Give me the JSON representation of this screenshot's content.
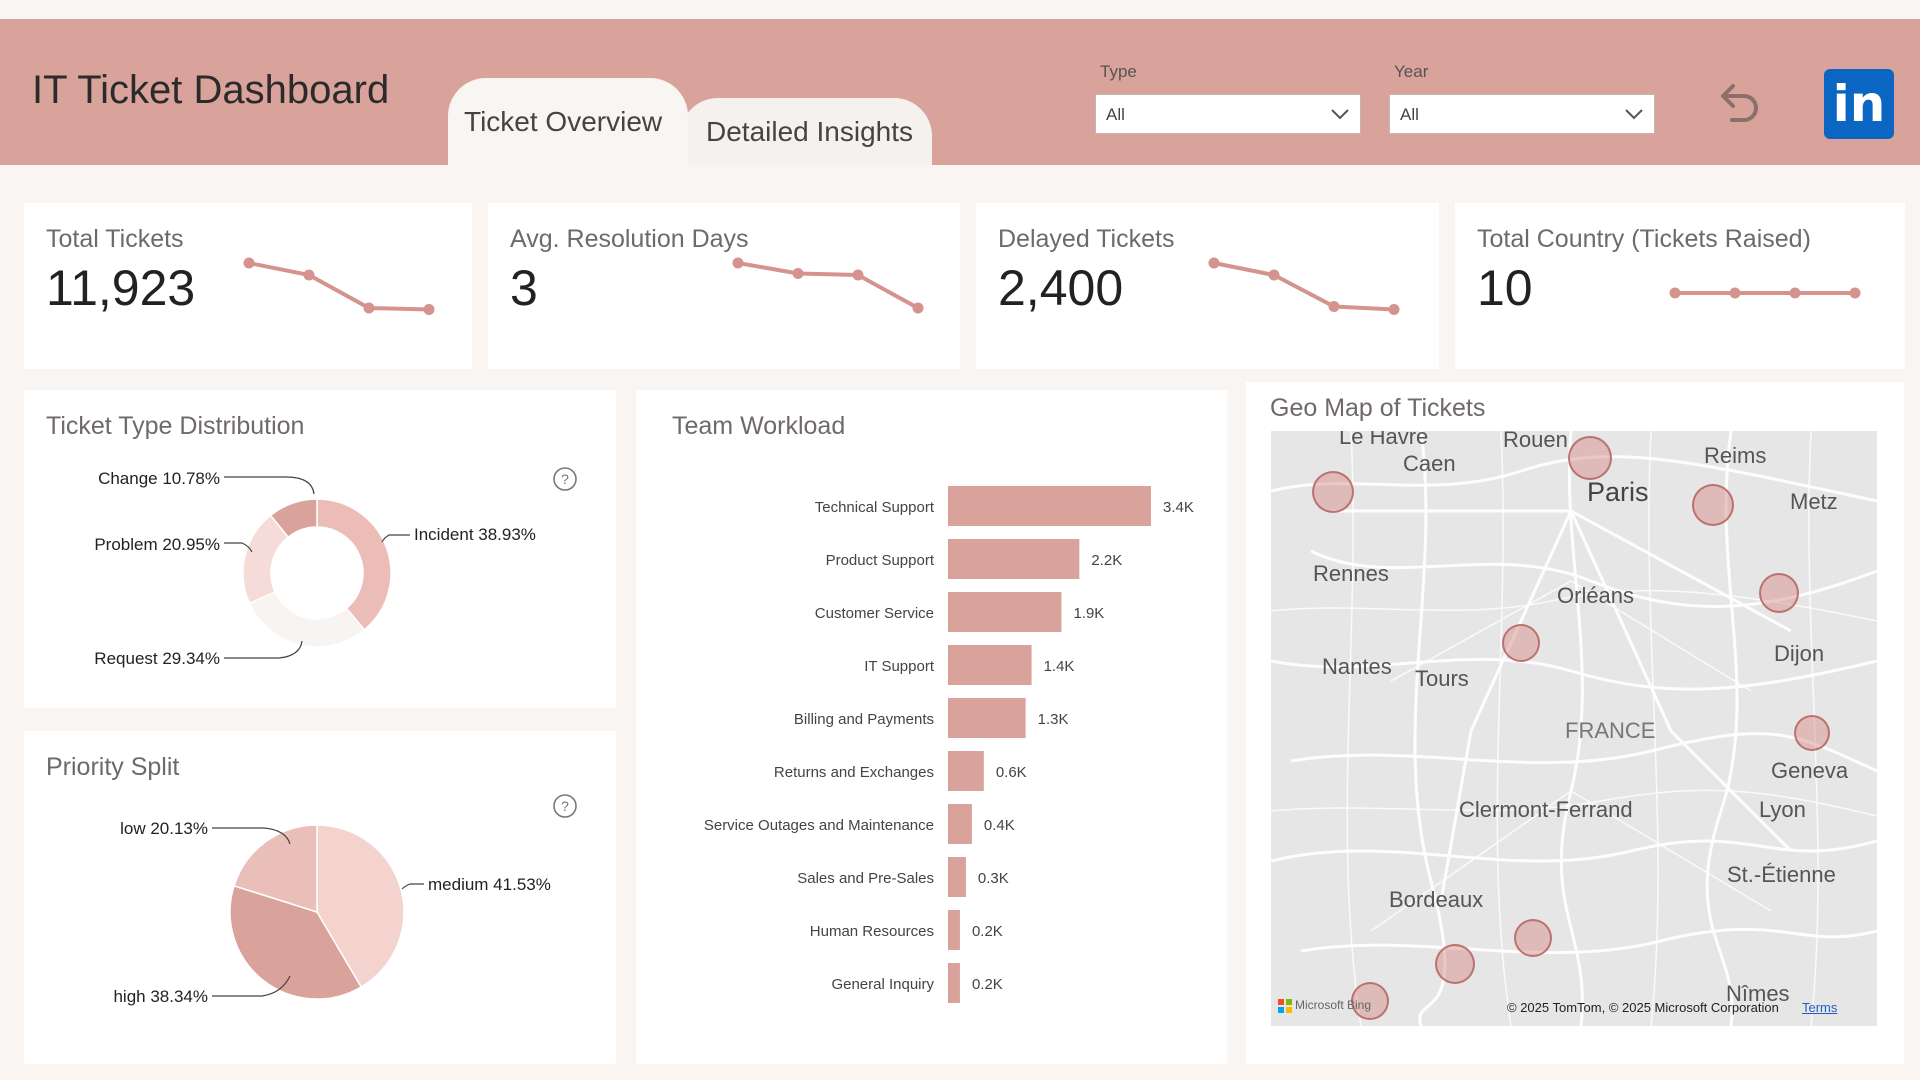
{
  "app_title": "IT Ticket Dashboard",
  "tabs": [
    {
      "label": "Ticket Overview"
    },
    {
      "label": "Detailed Insights"
    }
  ],
  "filters": {
    "type": {
      "label": "Type",
      "value": "All"
    },
    "year": {
      "label": "Year",
      "value": "All"
    }
  },
  "kpis": [
    {
      "title": "Total Tickets",
      "value": "11,923",
      "trend": [
        4,
        3.2,
        1.0,
        0.9
      ]
    },
    {
      "title": "Avg. Resolution Days",
      "value": "3",
      "trend": [
        4,
        3.3,
        3.2,
        1.0
      ]
    },
    {
      "title": "Delayed Tickets",
      "value": "2,400",
      "trend": [
        4,
        3.2,
        1.1,
        0.9
      ]
    },
    {
      "title": "Total Country (Tickets Raised)",
      "value": "10",
      "trend": [
        2,
        2,
        2,
        2
      ]
    }
  ],
  "ticket_type": {
    "title": "Ticket Type Distribution",
    "segments": [
      {
        "label": "Incident 38.93%",
        "value": 38.93,
        "color": "#ecbdb7"
      },
      {
        "label": "Request 29.34%",
        "value": 29.34,
        "color": "#f8f4f2"
      },
      {
        "label": "Problem 20.95%",
        "value": 20.95,
        "color": "#f5dcd8"
      },
      {
        "label": "Change 10.78%",
        "value": 10.78,
        "color": "#d9a39c"
      }
    ]
  },
  "priority": {
    "title": "Priority Split",
    "segments": [
      {
        "label": "medium 41.53%",
        "value": 41.53,
        "color": "#f4d2cd"
      },
      {
        "label": "high 38.34%",
        "value": 38.34,
        "color": "#d9a39c"
      },
      {
        "label": "low 20.13%",
        "value": 20.13,
        "color": "#ebbfb9"
      }
    ]
  },
  "team_workload": {
    "title": "Team Workload",
    "bar_color": "#d9a39c",
    "categories": [
      "Technical Support",
      "Product Support",
      "Customer Service",
      "IT Support",
      "Billing and Payments",
      "Returns and Exchanges",
      "Service Outages and Maintenance",
      "Sales and Pre-Sales",
      "Human Resources",
      "General Inquiry"
    ],
    "values": [
      3.4,
      2.2,
      1.9,
      1.4,
      1.3,
      0.6,
      0.4,
      0.3,
      0.2,
      0.2
    ],
    "value_labels": [
      "3.4K",
      "2.2K",
      "1.9K",
      "1.4K",
      "1.3K",
      "0.6K",
      "0.4K",
      "0.3K",
      "0.2K",
      "0.2K"
    ]
  },
  "geo_map": {
    "title": "Geo Map of Tickets",
    "cities": [
      "Le Havre",
      "Rouen",
      "Caen",
      "Paris",
      "Reims",
      "Metz",
      "Rennes",
      "Orléans",
      "Nantes",
      "Tours",
      "Dijon",
      "FRANCE",
      "Geneva",
      "Clermont-Ferrand",
      "Lyon",
      "St.-Étienne",
      "Bordeaux",
      "Nîmes"
    ],
    "attribution": "© 2025 TomTom, © 2025 Microsoft Corporation",
    "terms": "Terms",
    "provider": "Microsoft Bing"
  }
}
